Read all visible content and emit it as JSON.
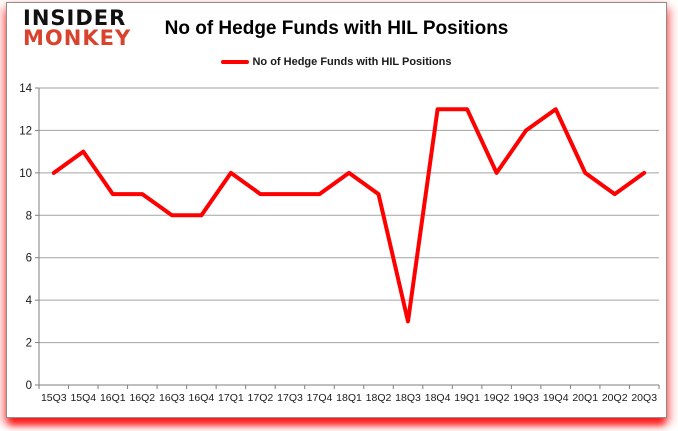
{
  "logo": {
    "line1": "INSIDER",
    "line2": "MONKEY",
    "insider_color": "#111111",
    "monkey_color": "#d9432e"
  },
  "chart_data": {
    "type": "line",
    "title": "No of Hedge Funds with HIL Positions",
    "legend": "No of Hedge Funds with HIL Positions",
    "legend_position": "top",
    "categories": [
      "15Q3",
      "15Q4",
      "16Q1",
      "16Q2",
      "16Q3",
      "16Q4",
      "17Q1",
      "17Q2",
      "17Q3",
      "17Q4",
      "18Q1",
      "18Q2",
      "18Q3",
      "18Q4",
      "19Q1",
      "19Q2",
      "19Q3",
      "19Q4",
      "20Q1",
      "20Q2",
      "20Q3"
    ],
    "series": [
      {
        "name": "No of Hedge Funds with HIL Positions",
        "values": [
          10,
          11,
          9,
          9,
          8,
          8,
          10,
          9,
          9,
          9,
          10,
          9,
          3,
          13,
          13,
          10,
          12,
          13,
          10,
          9,
          10
        ]
      }
    ],
    "xlabel": "",
    "ylabel": "",
    "ylim": [
      0,
      14
    ],
    "yticks": [
      0,
      2,
      4,
      6,
      8,
      10,
      12,
      14
    ],
    "grid": true,
    "line_color": "#fe0000",
    "grid_color": "#a3a3a3",
    "axis_color": "#7f7f7f",
    "tick_label_color": "#1a1a1a"
  }
}
